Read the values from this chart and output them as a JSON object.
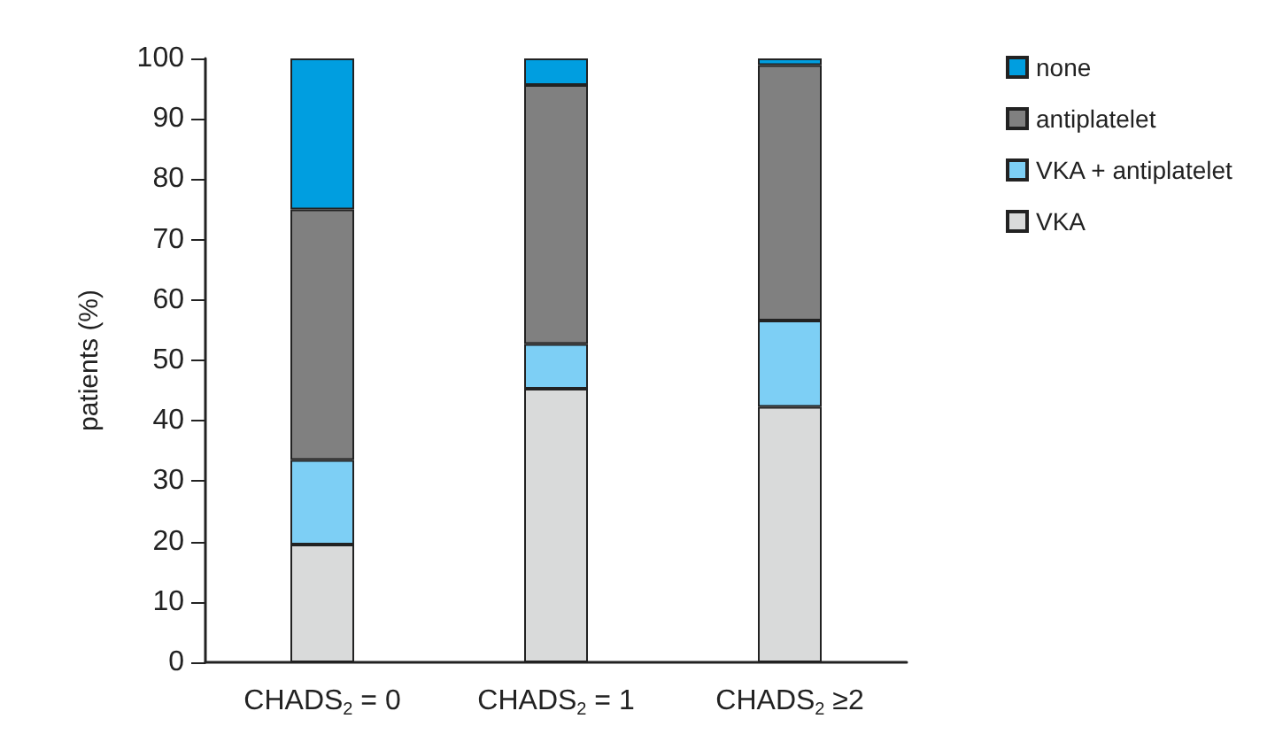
{
  "chart_data": {
    "type": "bar",
    "stacked": true,
    "ylabel": "patients (%)",
    "categories": [
      "CHADS$_{2}$ = 0",
      "CHADS$_{2}$ = 1",
      "CHADS$_{2}$ ≥2"
    ],
    "series": [
      {
        "name": "VKA",
        "color": "#d9dada",
        "values": [
          19.5,
          45.3,
          42.3
        ]
      },
      {
        "name": "VKA + antiplatelet",
        "color": "#7dcff5",
        "values": [
          14,
          7.4,
          14.3
        ]
      },
      {
        "name": "antiplatelet",
        "color": "#808080",
        "values": [
          41.5,
          42.9,
          42.3
        ]
      },
      {
        "name": "none",
        "color": "#009ee0",
        "values": [
          25,
          4.4,
          1.1
        ]
      }
    ],
    "ylim": [
      0,
      100
    ],
    "yticks": [
      0,
      10,
      20,
      30,
      40,
      50,
      60,
      70,
      80,
      90,
      100
    ],
    "grid": false,
    "legend": "top right"
  }
}
